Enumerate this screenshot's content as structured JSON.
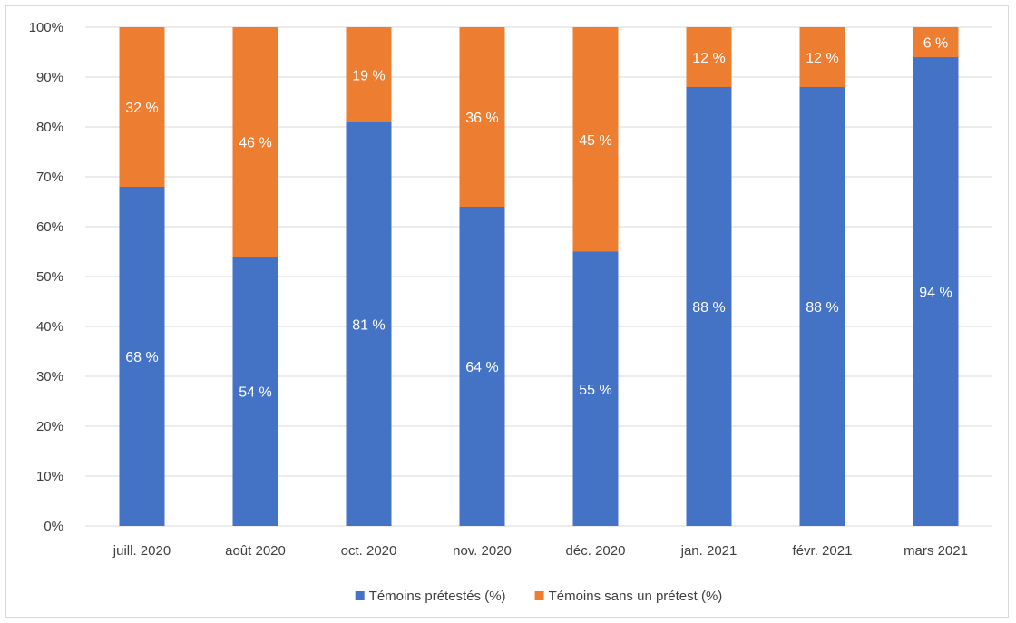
{
  "chart_data": {
    "type": "bar",
    "stacked": true,
    "title": "",
    "xlabel": "",
    "ylabel": "",
    "ylim": [
      0,
      100
    ],
    "y_ticks": [
      "0%",
      "10%",
      "20%",
      "30%",
      "40%",
      "50%",
      "60%",
      "70%",
      "80%",
      "90%",
      "100%"
    ],
    "categories": [
      "juill. 2020",
      "août 2020",
      "oct. 2020",
      "nov. 2020",
      "déc. 2020",
      "jan. 2021",
      "févr. 2021",
      "mars 2021"
    ],
    "series": [
      {
        "name": "Témoins prétestés (%)",
        "color": "#4472c4",
        "values": [
          68,
          54,
          81,
          64,
          55,
          88,
          88,
          94
        ],
        "labels": [
          "68 %",
          "54 %",
          "81 %",
          "64 %",
          "55 %",
          "88 %",
          "88 %",
          "94 %"
        ]
      },
      {
        "name": "Témoins sans un prétest (%)",
        "color": "#ed7d31",
        "values": [
          32,
          46,
          19,
          36,
          45,
          12,
          12,
          6
        ],
        "labels": [
          "32 %",
          "46 %",
          "19 %",
          "36 %",
          "45 %",
          "12 %",
          "12 %",
          "6 %"
        ]
      }
    ],
    "grid": true,
    "legend_position": "bottom",
    "gridline_color": "#d9d9d9"
  }
}
